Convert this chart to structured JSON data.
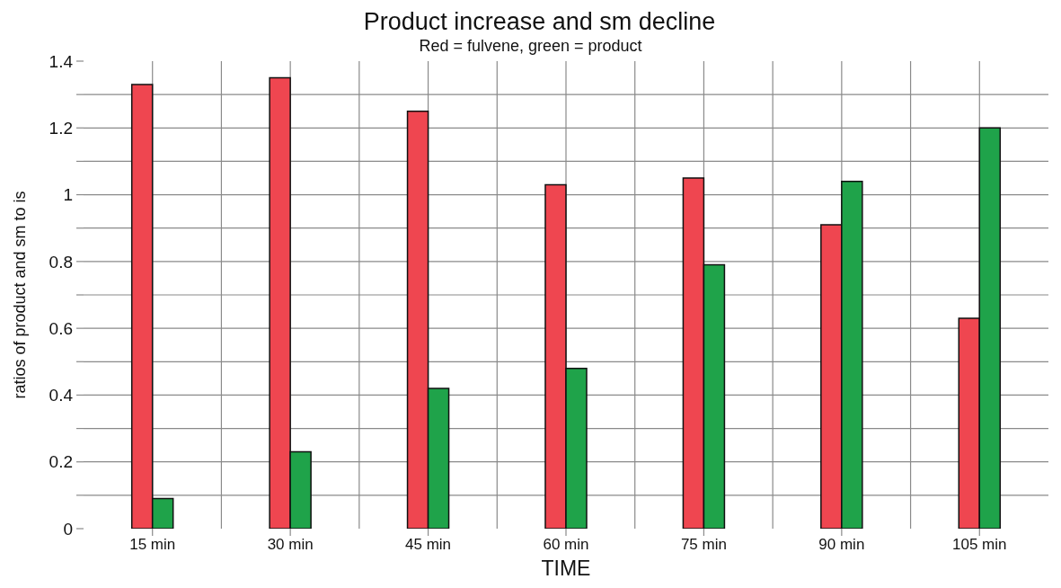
{
  "chart_data": {
    "type": "bar",
    "title": "Product increase and sm decline",
    "subtitle": "Red = fulvene, green = product",
    "xlabel": "TIME",
    "ylabel": "ratios of product and sm to is",
    "categories": [
      "15 min",
      "30 min",
      "45 min",
      "60 min",
      "75 min",
      "90 min",
      "105 min"
    ],
    "series": [
      {
        "color": "#ef4650",
        "values": [
          1.33,
          1.35,
          1.25,
          1.03,
          1.05,
          0.91,
          0.63
        ]
      },
      {
        "color": "#1fa34a",
        "values": [
          0.09,
          0.23,
          0.42,
          0.48,
          0.79,
          1.04,
          1.2
        ]
      }
    ],
    "ylim": [
      0,
      1.4
    ],
    "yticks": [
      0,
      {
        "value": 0.1,
        "label": null
      },
      0.2,
      {
        "value": 0.3,
        "label": null
      },
      0.4,
      {
        "value": 0.5,
        "label": null
      },
      0.6,
      {
        "value": 0.7,
        "label": null
      },
      0.8,
      {
        "value": 0.9,
        "label": null
      },
      1,
      {
        "value": 1.1,
        "label": null
      },
      1.2,
      {
        "value": 1.3,
        "label": null
      },
      1.4
    ],
    "grid": true
  }
}
